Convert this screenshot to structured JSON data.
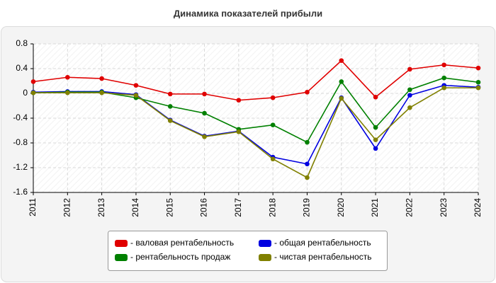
{
  "chart_data": {
    "type": "line",
    "title": "Динамика показателей прибыли",
    "categories": [
      "2011",
      "2012",
      "2013",
      "2014",
      "2015",
      "2016",
      "2017",
      "2018",
      "2019",
      "2020",
      "2021",
      "2022",
      "2023",
      "2024"
    ],
    "series": [
      {
        "name": "- валовая рентабельность",
        "color": "#e00000",
        "values": [
          0.19,
          0.26,
          0.24,
          0.13,
          -0.01,
          -0.01,
          -0.11,
          -0.07,
          0.02,
          0.53,
          -0.06,
          0.39,
          0.46,
          0.41
        ]
      },
      {
        "name": "- общая рентабельность",
        "color": "#0000e0",
        "values": [
          0.02,
          0.03,
          0.03,
          -0.02,
          -0.43,
          -0.69,
          -0.61,
          -1.03,
          -1.14,
          -0.07,
          -0.89,
          -0.03,
          0.13,
          0.1
        ]
      },
      {
        "name": "- рентабельность продаж",
        "color": "#008000",
        "values": [
          0.01,
          0.02,
          0.02,
          -0.07,
          -0.21,
          -0.32,
          -0.58,
          -0.51,
          -0.79,
          0.19,
          -0.55,
          0.06,
          0.25,
          0.18
        ]
      },
      {
        "name": "- чистая рентабельность",
        "color": "#808000",
        "values": [
          0.01,
          0.01,
          0.01,
          -0.03,
          -0.44,
          -0.7,
          -0.62,
          -1.06,
          -1.36,
          -0.08,
          -0.75,
          -0.23,
          0.09,
          0.09
        ]
      }
    ],
    "ylim": [
      -1.6,
      0.8
    ],
    "yticks": [
      0.8,
      0.4,
      0,
      -0.4,
      -0.8,
      -1.2,
      -1.6
    ],
    "grid": true
  }
}
